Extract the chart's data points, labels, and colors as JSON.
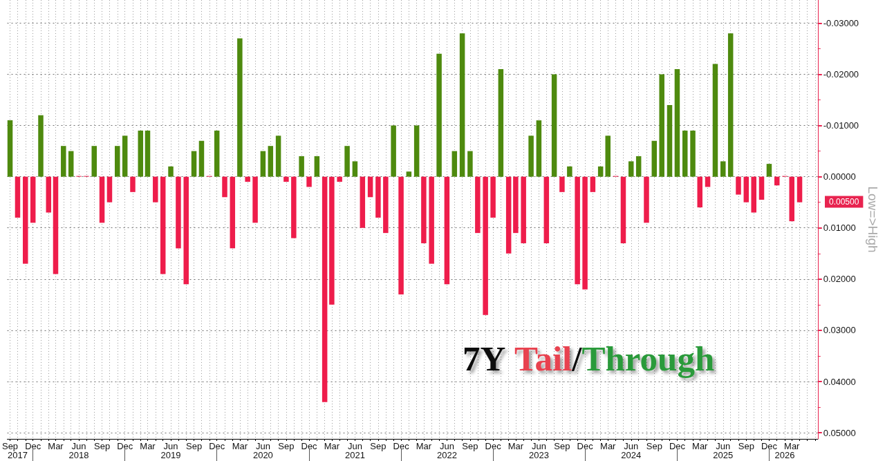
{
  "chart_data": {
    "type": "bar",
    "title": "7Y Tail/Through",
    "ylabel": "Low=>High",
    "annotations": [
      "0.00500"
    ],
    "x": [
      "2017-09",
      "2017-10",
      "2017-11",
      "2017-12",
      "2018-01",
      "2018-02",
      "2018-03",
      "2018-04",
      "2018-05",
      "2018-06",
      "2018-07",
      "2018-08",
      "2018-09",
      "2018-10",
      "2018-11",
      "2018-12",
      "2019-01",
      "2019-02",
      "2019-03",
      "2019-04",
      "2019-05",
      "2019-06",
      "2019-07",
      "2019-08",
      "2019-09",
      "2019-10",
      "2019-11",
      "2019-12",
      "2020-01",
      "2020-02",
      "2020-03",
      "2020-04",
      "2020-05",
      "2020-06",
      "2020-07",
      "2020-08",
      "2020-09",
      "2020-10",
      "2020-11",
      "2020-12",
      "2021-01",
      "2021-02",
      "2021-03",
      "2021-04",
      "2021-05",
      "2021-06",
      "2021-07",
      "2021-08",
      "2021-09",
      "2021-10",
      "2021-11",
      "2021-12",
      "2022-01",
      "2022-02",
      "2022-03",
      "2022-04",
      "2022-05",
      "2022-06",
      "2022-07",
      "2022-08",
      "2022-09",
      "2022-10",
      "2022-11",
      "2022-12",
      "2023-01",
      "2023-02",
      "2023-03",
      "2023-04",
      "2023-05",
      "2023-06",
      "2023-07",
      "2023-08",
      "2023-09",
      "2023-10",
      "2023-11",
      "2023-12",
      "2024-01",
      "2024-02",
      "2024-03",
      "2024-04",
      "2024-05",
      "2024-06",
      "2024-07",
      "2024-08",
      "2024-09",
      "2024-10",
      "2024-11",
      "2024-12",
      "2025-01",
      "2025-02",
      "2025-03",
      "2025-04",
      "2025-05",
      "2025-06",
      "2025-07",
      "2025-08",
      "2025-09",
      "2025-10",
      "2025-11",
      "2025-12",
      "2026-01",
      "2026-02",
      "2026-03",
      "2026-04"
    ],
    "values": [
      -0.011,
      0.008,
      0.017,
      0.009,
      -0.012,
      0.007,
      0.019,
      -0.006,
      -0.005,
      0,
      0,
      -0.006,
      0.009,
      0.005,
      -0.006,
      -0.008,
      0.003,
      -0.009,
      -0.009,
      0.005,
      0.019,
      -0.002,
      0.014,
      0.021,
      -0.005,
      -0.007,
      0,
      -0.009,
      0.004,
      0.014,
      -0.027,
      0.001,
      0.009,
      -0.005,
      -0.006,
      -0.008,
      0.001,
      0.012,
      -0.004,
      0.002,
      -0.004,
      0.044,
      0.025,
      0.001,
      -0.006,
      -0.003,
      0.01,
      0.004,
      0.008,
      0.011,
      -0.01,
      0.023,
      -0.001,
      -0.01,
      0.013,
      0.017,
      -0.024,
      0.021,
      -0.005,
      -0.028,
      -0.005,
      0.011,
      0.027,
      0.008,
      -0.021,
      0.015,
      0.011,
      0.013,
      -0.008,
      -0.011,
      0.013,
      -0.02,
      0.003,
      -0.002,
      0.021,
      0.022,
      0.003,
      -0.002,
      -0.008,
      0,
      0.013,
      -0.003,
      -0.004,
      0.009,
      -0.007,
      -0.02,
      -0.014,
      -0.021,
      -0.009,
      -0.009,
      0.006,
      0.002,
      -0.022,
      -0.003,
      -0.028,
      0.0035,
      0.005,
      0.007,
      0.0045,
      -0.0025,
      0.0017,
      0,
      0.0087,
      0.005
    ],
    "colors": [
      "#4e8a0e",
      "#ee1d4b",
      "#ee1d4b",
      "#ee1d4b",
      "#4e8a0e",
      "#ee1d4b",
      "#ee1d4b",
      "#4e8a0e",
      "#4e8a0e",
      "#ee1d4b",
      "#ee1d4b",
      "#4e8a0e",
      "#ee1d4b",
      "#ee1d4b",
      "#4e8a0e",
      "#4e8a0e",
      "#ee1d4b",
      "#4e8a0e",
      "#4e8a0e",
      "#ee1d4b",
      "#ee1d4b",
      "#4e8a0e",
      "#ee1d4b",
      "#ee1d4b",
      "#4e8a0e",
      "#4e8a0e",
      "#ee1d4b",
      "#4e8a0e",
      "#ee1d4b",
      "#ee1d4b",
      "#4e8a0e",
      "#ee1d4b",
      "#ee1d4b",
      "#4e8a0e",
      "#4e8a0e",
      "#4e8a0e",
      "#ee1d4b",
      "#ee1d4b",
      "#4e8a0e",
      "#ee1d4b",
      "#4e8a0e",
      "#ee1d4b",
      "#ee1d4b",
      "#ee1d4b",
      "#4e8a0e",
      "#4e8a0e",
      "#ee1d4b",
      "#ee1d4b",
      "#ee1d4b",
      "#ee1d4b",
      "#4e8a0e",
      "#ee1d4b",
      "#4e8a0e",
      "#4e8a0e",
      "#ee1d4b",
      "#ee1d4b",
      "#4e8a0e",
      "#ee1d4b",
      "#4e8a0e",
      "#4e8a0e",
      "#4e8a0e",
      "#ee1d4b",
      "#ee1d4b",
      "#ee1d4b",
      "#4e8a0e",
      "#ee1d4b",
      "#ee1d4b",
      "#ee1d4b",
      "#4e8a0e",
      "#4e8a0e",
      "#ee1d4b",
      "#4e8a0e",
      "#ee1d4b",
      "#4e8a0e",
      "#ee1d4b",
      "#ee1d4b",
      "#ee1d4b",
      "#4e8a0e",
      "#4e8a0e",
      "#ee1d4b",
      "#ee1d4b",
      "#4e8a0e",
      "#4e8a0e",
      "#ee1d4b",
      "#4e8a0e",
      "#4e8a0e",
      "#4e8a0e",
      "#4e8a0e",
      "#4e8a0e",
      "#4e8a0e",
      "#ee1d4b",
      "#ee1d4b",
      "#4e8a0e",
      "#4e8a0e",
      "#4e8a0e",
      "#ee1d4b",
      "#ee1d4b",
      "#ee1d4b",
      "#ee1d4b",
      "#4e8a0e",
      "#ee1d4b",
      "#ee1d4b",
      "#ee1d4b",
      "#ee1d4b"
    ],
    "xlim": [
      "2017-08-21",
      "2026-06-12"
    ],
    "xticks": [
      {
        "value": "2017-09",
        "label": "Sep"
      },
      {
        "value": "2017-10",
        "label": null
      },
      {
        "value": "2017-11",
        "label": null
      },
      {
        "value": "2017-12",
        "label": "Dec"
      },
      {
        "value": "2018-01",
        "label": null
      },
      {
        "value": "2018-02",
        "label": null
      },
      {
        "value": "2018-03",
        "label": "Mar"
      },
      {
        "value": "2018-04",
        "label": null
      },
      {
        "value": "2018-05",
        "label": null
      },
      {
        "value": "2018-06",
        "label": "Jun"
      },
      {
        "value": "2018-07",
        "label": null
      },
      {
        "value": "2018-08",
        "label": null
      },
      {
        "value": "2018-09",
        "label": "Sep"
      },
      {
        "value": "2018-10",
        "label": null
      },
      {
        "value": "2018-11",
        "label": null
      },
      {
        "value": "2018-12",
        "label": "Dec"
      },
      {
        "value": "2019-01",
        "label": null
      },
      {
        "value": "2019-02",
        "label": null
      },
      {
        "value": "2019-03",
        "label": "Mar"
      },
      {
        "value": "2019-04",
        "label": null
      },
      {
        "value": "2019-05",
        "label": null
      },
      {
        "value": "2019-06",
        "label": "Jun"
      },
      {
        "value": "2019-07",
        "label": null
      },
      {
        "value": "2019-08",
        "label": null
      },
      {
        "value": "2019-09",
        "label": "Sep"
      },
      {
        "value": "2019-10",
        "label": null
      },
      {
        "value": "2019-11",
        "label": null
      },
      {
        "value": "2019-12",
        "label": "Dec"
      },
      {
        "value": "2020-01",
        "label": null
      },
      {
        "value": "2020-02",
        "label": null
      },
      {
        "value": "2020-03",
        "label": "Mar"
      },
      {
        "value": "2020-04",
        "label": null
      },
      {
        "value": "2020-05",
        "label": null
      },
      {
        "value": "2020-06",
        "label": "Jun"
      },
      {
        "value": "2020-07",
        "label": null
      },
      {
        "value": "2020-08",
        "label": null
      },
      {
        "value": "2020-09",
        "label": "Sep"
      },
      {
        "value": "2020-10",
        "label": null
      },
      {
        "value": "2020-11",
        "label": null
      },
      {
        "value": "2020-12",
        "label": "Dec"
      },
      {
        "value": "2021-01",
        "label": null
      },
      {
        "value": "2021-02",
        "label": null
      },
      {
        "value": "2021-03",
        "label": "Mar"
      },
      {
        "value": "2021-04",
        "label": null
      },
      {
        "value": "2021-05",
        "label": null
      },
      {
        "value": "2021-06",
        "label": "Jun"
      },
      {
        "value": "2021-07",
        "label": null
      },
      {
        "value": "2021-08",
        "label": null
      },
      {
        "value": "2021-09",
        "label": "Sep"
      },
      {
        "value": "2021-10",
        "label": null
      },
      {
        "value": "2021-11",
        "label": null
      },
      {
        "value": "2021-12",
        "label": "Dec"
      },
      {
        "value": "2022-01",
        "label": null
      },
      {
        "value": "2022-02",
        "label": null
      },
      {
        "value": "2022-03",
        "label": "Mar"
      },
      {
        "value": "2022-04",
        "label": null
      },
      {
        "value": "2022-05",
        "label": null
      },
      {
        "value": "2022-06",
        "label": "Jun"
      },
      {
        "value": "2022-07",
        "label": null
      },
      {
        "value": "2022-08",
        "label": null
      },
      {
        "value": "2022-09",
        "label": "Sep"
      },
      {
        "value": "2022-10",
        "label": null
      },
      {
        "value": "2022-11",
        "label": null
      },
      {
        "value": "2022-12",
        "label": "Dec"
      },
      {
        "value": "2023-01",
        "label": null
      },
      {
        "value": "2023-02",
        "label": null
      },
      {
        "value": "2023-03",
        "label": "Mar"
      },
      {
        "value": "2023-04",
        "label": null
      },
      {
        "value": "2023-05",
        "label": null
      },
      {
        "value": "2023-06",
        "label": "Jun"
      },
      {
        "value": "2023-07",
        "label": null
      },
      {
        "value": "2023-08",
        "label": null
      },
      {
        "value": "2023-09",
        "label": "Sep"
      },
      {
        "value": "2023-10",
        "label": null
      },
      {
        "value": "2023-11",
        "label": null
      },
      {
        "value": "2023-12",
        "label": "Dec"
      },
      {
        "value": "2024-01",
        "label": null
      },
      {
        "value": "2024-02",
        "label": null
      },
      {
        "value": "2024-03",
        "label": "Mar"
      },
      {
        "value": "2024-04",
        "label": null
      },
      {
        "value": "2024-05",
        "label": null
      },
      {
        "value": "2024-06",
        "label": "Jun"
      },
      {
        "value": "2024-07",
        "label": null
      },
      {
        "value": "2024-08",
        "label": null
      },
      {
        "value": "2024-09",
        "label": "Sep"
      },
      {
        "value": "2024-10",
        "label": null
      },
      {
        "value": "2024-11",
        "label": null
      },
      {
        "value": "2024-12",
        "label": "Dec"
      },
      {
        "value": "2025-01",
        "label": null
      },
      {
        "value": "2025-02",
        "label": null
      },
      {
        "value": "2025-03",
        "label": "Mar"
      },
      {
        "value": "2025-04",
        "label": null
      },
      {
        "value": "2025-05",
        "label": null
      },
      {
        "value": "2025-06",
        "label": "Jun"
      },
      {
        "value": "2025-07",
        "label": null
      },
      {
        "value": "2025-08",
        "label": null
      },
      {
        "value": "2025-09",
        "label": "Sep"
      },
      {
        "value": "2025-10",
        "label": null
      },
      {
        "value": "2025-11",
        "label": null
      },
      {
        "value": "2025-12",
        "label": "Dec"
      },
      {
        "value": "2026-01",
        "label": null
      },
      {
        "value": "2026-02",
        "label": null
      },
      {
        "value": "2026-03",
        "label": "Mar"
      },
      {
        "value": "2026-04",
        "label": null
      },
      {
        "value": "2026-05",
        "label": null
      },
      {
        "value": "2026-06",
        "label": null
      }
    ],
    "x2lim": [
      "2017-08-21",
      "2026-06-12"
    ],
    "x2ticks": [
      {
        "value": "2017-10",
        "label": "2017"
      },
      {
        "value": "2017-12",
        "label": null
      },
      {
        "value": "2018-06",
        "label": "2018"
      },
      {
        "value": "2018-12",
        "label": null
      },
      {
        "value": "2019-06",
        "label": "2019"
      },
      {
        "value": "2019-12",
        "label": null
      },
      {
        "value": "2020-06",
        "label": "2020"
      },
      {
        "value": "2020-12",
        "label": null
      },
      {
        "value": "2021-06",
        "label": "2021"
      },
      {
        "value": "2021-12",
        "label": null
      },
      {
        "value": "2022-06",
        "label": "2022"
      },
      {
        "value": "2022-12",
        "label": null
      },
      {
        "value": "2023-06",
        "label": "2023"
      },
      {
        "value": "2023-12",
        "label": null
      },
      {
        "value": "2024-06",
        "label": "2024"
      },
      {
        "value": "2024-12",
        "label": null
      },
      {
        "value": "2025-06",
        "label": "2025"
      },
      {
        "value": "2025-12",
        "label": null
      },
      {
        "value": "2026-02",
        "label": "2026"
      }
    ],
    "ylim": [
      0.0512,
      -0.0345
    ],
    "yticks": [
      {
        "value": -0.03,
        "label": "-0.03000"
      },
      {
        "value": -0.025,
        "label": null
      },
      {
        "value": -0.02,
        "label": "-0.02000"
      },
      {
        "value": -0.015,
        "label": null
      },
      {
        "value": -0.01,
        "label": "-0.01000"
      },
      {
        "value": -0.005,
        "label": null
      },
      {
        "value": 0,
        "label": "0.00000"
      },
      {
        "value": 0.005,
        "label": null
      },
      {
        "value": 0.01,
        "label": "0.01000"
      },
      {
        "value": 0.015,
        "label": null
      },
      {
        "value": 0.02,
        "label": "0.02000"
      },
      {
        "value": 0.025,
        "label": null
      },
      {
        "value": 0.03,
        "label": "0.03000"
      },
      {
        "value": 0.035,
        "label": null
      },
      {
        "value": 0.04,
        "label": "0.04000"
      },
      {
        "value": 0.045,
        "label": null
      },
      {
        "value": 0.05,
        "label": "0.05000"
      }
    ],
    "grid": true
  }
}
